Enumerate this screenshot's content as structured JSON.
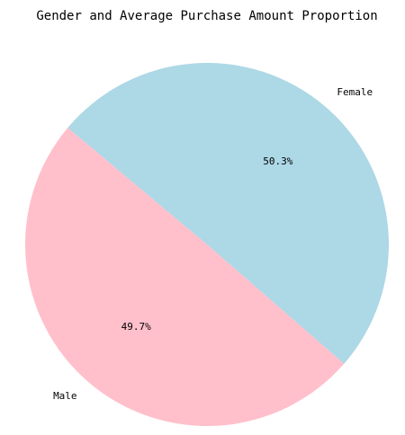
{
  "chart_data": {
    "type": "pie",
    "title": "Gender and Average Purchase Amount Proportion",
    "categories": [
      "Male",
      "Female"
    ],
    "values": [
      49.7,
      50.3
    ],
    "percent_labels": [
      "49.7%",
      "50.3%"
    ],
    "colors": [
      "#ffc0cb",
      "#add8e6"
    ],
    "start_angle_deg": 140,
    "direction": "counterclockwise",
    "legend": "none"
  }
}
